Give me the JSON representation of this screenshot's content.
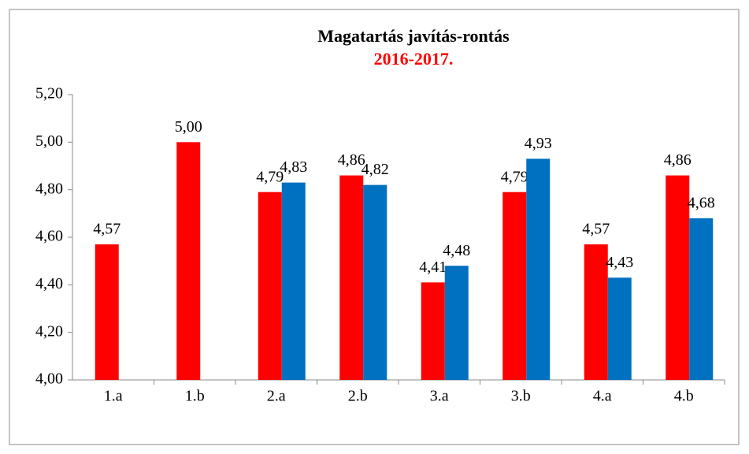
{
  "chart_data": {
    "type": "bar",
    "title": "Magatartás javítás-rontás",
    "subtitle": "2016-2017.",
    "categories": [
      "1.a",
      "1.b",
      "2.a",
      "2.b",
      "3.a",
      "3.b",
      "4.a",
      "4.b"
    ],
    "series": [
      {
        "color": "#ff0000",
        "values": [
          4.57,
          5.0,
          4.79,
          4.86,
          4.41,
          4.79,
          4.57,
          4.86
        ],
        "value_labels": [
          "4,57",
          "5,00",
          "4,79",
          "4,86",
          "4,41",
          "4,79",
          "4,57",
          "4,86"
        ]
      },
      {
        "color": "#0070c0",
        "values": [
          null,
          null,
          4.83,
          4.82,
          4.48,
          4.93,
          4.43,
          4.68
        ],
        "value_labels": [
          null,
          null,
          "4,83",
          "4,82",
          "4,48",
          "4,93",
          "4,43",
          "4,68"
        ]
      }
    ],
    "ylim": [
      4.0,
      5.2
    ],
    "yticks": [
      {
        "value": 4.0,
        "label": "4,00"
      },
      {
        "value": 4.2,
        "label": "4,20"
      },
      {
        "value": 4.4,
        "label": "4,40"
      },
      {
        "value": 4.6,
        "label": "4,60"
      },
      {
        "value": 4.8,
        "label": "4,80"
      },
      {
        "value": 5.0,
        "label": "5,00"
      },
      {
        "value": 5.2,
        "label": "5,20"
      }
    ],
    "grid": false
  }
}
